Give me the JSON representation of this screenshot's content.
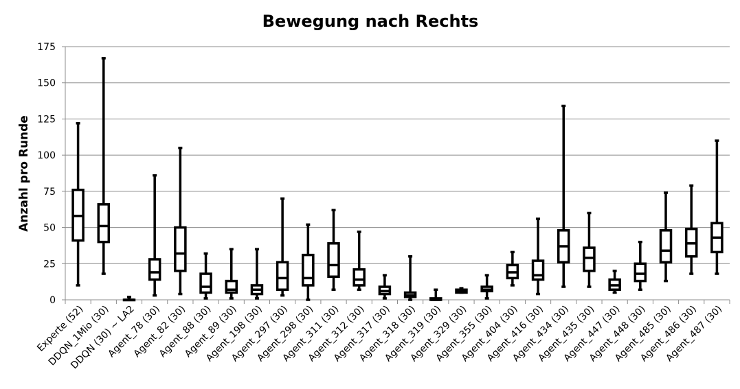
{
  "chart_data": {
    "type": "box",
    "title": "Bewegung nach Rechts",
    "xlabel": "",
    "ylabel": "Anzahl pro Runde",
    "ylim": [
      0,
      175
    ],
    "yticks": [
      0,
      25,
      50,
      75,
      100,
      125,
      150,
      175
    ],
    "grid": true,
    "legend": "none",
    "categories": [
      "Experte (52)",
      "DDQN_1Mio (30)",
      "DDQN (30) ~ LA2",
      "Agent_78 (30)",
      "Agent_82 (30)",
      "Agent_88 (30)",
      "Agent_89 (30)",
      "Agent_198 (30)",
      "Agent_297 (30)",
      "Agent_298 (30)",
      "Agent_311 (30)",
      "Agent_312 (30)",
      "Agent_317 (30)",
      "Agent_318 (30)",
      "Agent_319 (30)",
      "Agent_329 (30)",
      "Agent_355 (30)",
      "Agent_404 (30)",
      "Agent_416 (30)",
      "Agent_434 (30)",
      "Agent_435 (30)",
      "Agent_447 (30)",
      "Agent_448 (30)",
      "Agent_485 (30)",
      "Agent_486 (30)",
      "Agent_487 (30)"
    ],
    "boxes": [
      {
        "min": 10,
        "q1": 41,
        "median": 58,
        "q3": 76,
        "max": 122
      },
      {
        "min": 18,
        "q1": 40,
        "median": 51,
        "q3": 66,
        "max": 167
      },
      {
        "min": 0,
        "q1": 0,
        "median": 0,
        "q3": 0,
        "max": 2
      },
      {
        "min": 3,
        "q1": 14,
        "median": 19,
        "q3": 28,
        "max": 86
      },
      {
        "min": 4,
        "q1": 20,
        "median": 32,
        "q3": 50,
        "max": 105
      },
      {
        "min": 1,
        "q1": 5,
        "median": 9,
        "q3": 18,
        "max": 32
      },
      {
        "min": 1,
        "q1": 5,
        "median": 7,
        "q3": 13,
        "max": 35
      },
      {
        "min": 1,
        "q1": 4,
        "median": 7,
        "q3": 10,
        "max": 35
      },
      {
        "min": 3,
        "q1": 7,
        "median": 15,
        "q3": 26,
        "max": 70
      },
      {
        "min": 0,
        "q1": 10,
        "median": 15,
        "q3": 31,
        "max": 52
      },
      {
        "min": 7,
        "q1": 16,
        "median": 24,
        "q3": 39,
        "max": 62
      },
      {
        "min": 7,
        "q1": 10,
        "median": 14,
        "q3": 21,
        "max": 47
      },
      {
        "min": 1,
        "q1": 4,
        "median": 6,
        "q3": 9,
        "max": 17
      },
      {
        "min": 0,
        "q1": 2,
        "median": 3,
        "q3": 5,
        "max": 30
      },
      {
        "min": 0,
        "q1": 0,
        "median": 0,
        "q3": 1,
        "max": 7
      },
      {
        "min": 5,
        "q1": 5,
        "median": 6,
        "q3": 7,
        "max": 8
      },
      {
        "min": 1,
        "q1": 6,
        "median": 7,
        "q3": 9,
        "max": 17
      },
      {
        "min": 10,
        "q1": 15,
        "median": 19,
        "q3": 24,
        "max": 33
      },
      {
        "min": 4,
        "q1": 14,
        "median": 17,
        "q3": 27,
        "max": 56
      },
      {
        "min": 9,
        "q1": 26,
        "median": 37,
        "q3": 48,
        "max": 134
      },
      {
        "min": 9,
        "q1": 20,
        "median": 29,
        "q3": 36,
        "max": 60
      },
      {
        "min": 5,
        "q1": 7,
        "median": 10,
        "q3": 14,
        "max": 20
      },
      {
        "min": 7,
        "q1": 13,
        "median": 18,
        "q3": 25,
        "max": 40
      },
      {
        "min": 13,
        "q1": 26,
        "median": 34,
        "q3": 48,
        "max": 74
      },
      {
        "min": 18,
        "q1": 30,
        "median": 39,
        "q3": 49,
        "max": 79
      },
      {
        "min": 18,
        "q1": 33,
        "median": 43,
        "q3": 53,
        "max": 110
      }
    ]
  }
}
